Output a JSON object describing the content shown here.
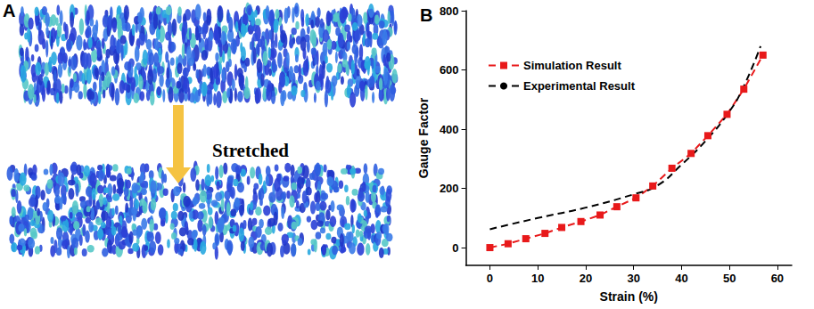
{
  "panel_a": {
    "label": "A",
    "caption": "Stretched"
  },
  "chart_data": {
    "type": "line",
    "title": "B",
    "x_label": "Strain (%)",
    "y_label": "Gauge Factor",
    "xlim": [
      -5,
      63
    ],
    "xticks": [
      0,
      10,
      20,
      30,
      40,
      50,
      60
    ],
    "ylim": [
      -60,
      800
    ],
    "yticks": [
      0,
      200,
      400,
      600,
      800
    ],
    "grid": false,
    "legend": "upper left",
    "series": [
      {
        "name": "Simulation Result",
        "color": "#e8191a",
        "marker": "square",
        "line_style": "dashed",
        "x": [
          0,
          3.8,
          7.5,
          11.5,
          15,
          19,
          23,
          26.5,
          30.5,
          34,
          38,
          42,
          45.5,
          49.5,
          53,
          57
        ],
        "values": [
          0,
          13,
          30,
          48,
          68,
          88,
          110,
          138,
          168,
          208,
          268,
          318,
          378,
          450,
          535,
          650
        ]
      },
      {
        "name": "Experimental Result",
        "color": "#000000",
        "marker": "none",
        "line_style": "dashed",
        "x": [
          0,
          10,
          20,
          30,
          35,
          40,
          45,
          50,
          53,
          56.5
        ],
        "values": [
          62,
          100,
          135,
          180,
          210,
          280,
          360,
          460,
          545,
          680
        ]
      }
    ]
  }
}
